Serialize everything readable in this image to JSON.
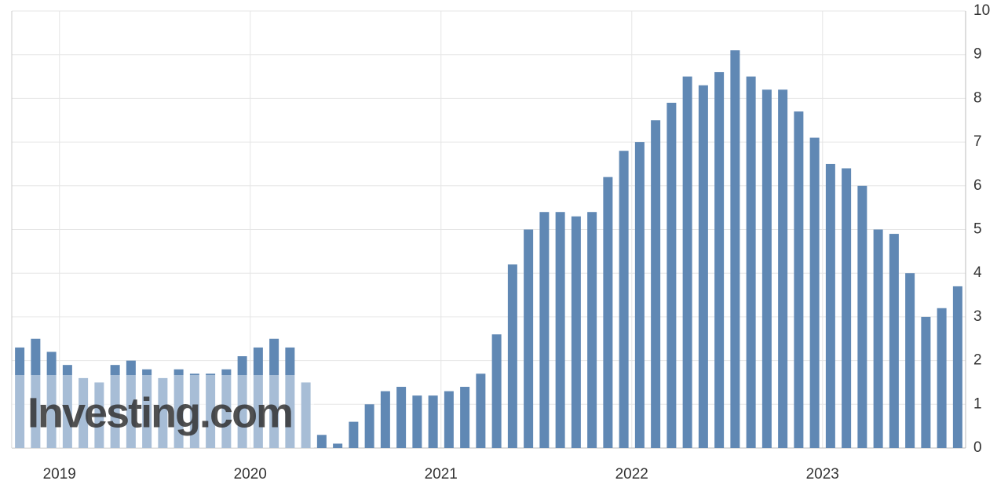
{
  "chart_data": {
    "type": "bar",
    "categories": [
      null,
      null,
      null,
      "2019",
      null,
      null,
      null,
      null,
      null,
      null,
      null,
      null,
      null,
      null,
      null,
      "2020",
      null,
      null,
      null,
      null,
      null,
      null,
      null,
      null,
      null,
      null,
      null,
      "2021",
      null,
      null,
      null,
      null,
      null,
      null,
      null,
      null,
      null,
      null,
      null,
      "2022",
      null,
      null,
      null,
      null,
      null,
      null,
      null,
      null,
      null,
      null,
      null,
      "2023",
      null,
      null,
      null,
      null,
      null,
      null,
      null,
      null
    ],
    "values": [
      2.3,
      2.5,
      2.2,
      1.9,
      1.6,
      1.5,
      1.9,
      2.0,
      1.8,
      1.6,
      1.8,
      1.7,
      1.7,
      1.8,
      2.1,
      2.3,
      2.5,
      2.3,
      1.5,
      0.3,
      0.1,
      0.6,
      1.0,
      1.3,
      1.4,
      1.2,
      1.2,
      1.3,
      1.4,
      1.7,
      2.6,
      4.2,
      5.0,
      5.4,
      5.4,
      5.3,
      5.4,
      6.2,
      6.8,
      7.0,
      7.5,
      7.9,
      8.5,
      8.3,
      8.6,
      9.1,
      8.5,
      8.2,
      8.2,
      7.7,
      7.1,
      6.5,
      6.4,
      6.0,
      5.0,
      4.9,
      4.0,
      3.0,
      3.2,
      3.7
    ],
    "color": "#6088b4",
    "ylim": [
      0,
      10
    ],
    "yticks": [
      0,
      1,
      2,
      3,
      4,
      5,
      6,
      7,
      8,
      9,
      10
    ],
    "grid": true,
    "watermark": "Investing.com"
  }
}
